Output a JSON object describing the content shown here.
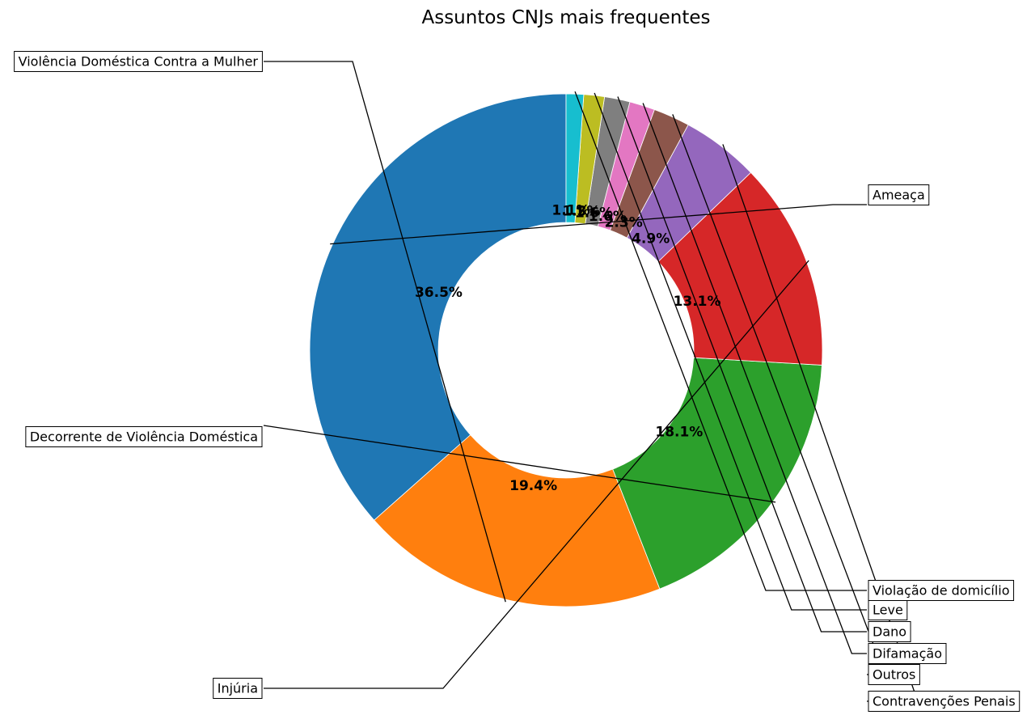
{
  "chart_data": {
    "type": "pie",
    "title": "Assuntos CNJs mais frequentes",
    "slices": [
      {
        "label": "Ameaça",
        "value": 36.5,
        "pct_label": "36.5%",
        "color": "#1f77b4"
      },
      {
        "label": "Violência Doméstica Contra a Mulher",
        "value": 19.4,
        "pct_label": "19.4%",
        "color": "#ff7f0e"
      },
      {
        "label": "Decorrente de Violência Doméstica",
        "value": 18.1,
        "pct_label": "18.1%",
        "color": "#2ca02c"
      },
      {
        "label": "Injúria",
        "value": 13.1,
        "pct_label": "13.1%",
        "color": "#d62728"
      },
      {
        "label": "Contravenções Penais",
        "value": 4.9,
        "pct_label": "4.9%",
        "color": "#9467bd"
      },
      {
        "label": "Outros",
        "value": 2.3,
        "pct_label": "2.3%",
        "color": "#8c564b"
      },
      {
        "label": "Difamação",
        "value": 1.6,
        "pct_label": "1.6%",
        "color": "#e377c2"
      },
      {
        "label": "Dano",
        "value": 1.6,
        "pct_label": "1.6%",
        "color": "#7f7f7f"
      },
      {
        "label": "Leve",
        "value": 1.3,
        "pct_label": "1.3%",
        "color": "#bcbd22"
      },
      {
        "label": "Violação de domicílio",
        "value": 1.1,
        "pct_label": "1.1%",
        "color": "#17becf"
      }
    ],
    "hole": "donut",
    "start": "top",
    "direction": "counterclockwise",
    "legend": "none"
  }
}
